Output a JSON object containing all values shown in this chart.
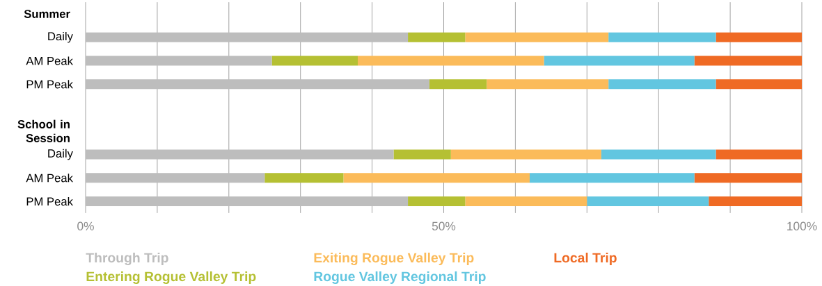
{
  "chart_data": {
    "type": "bar",
    "orientation": "horizontal",
    "stacked": true,
    "categories": [
      null,
      "Daily",
      "AM Peak",
      "PM Peak",
      null,
      null,
      "Daily",
      "AM Peak",
      "PM Peak"
    ],
    "annotations": [
      "Summer",
      "School in Session"
    ],
    "series": [
      {
        "name": "Through Trip",
        "color": "#bdbdbd",
        "values": [
          null,
          45,
          26,
          48,
          null,
          null,
          43,
          25,
          45
        ]
      },
      {
        "name": "Entering Rogue Valley Trip",
        "color": "#b5c033",
        "values": [
          null,
          8,
          12,
          8,
          null,
          null,
          8,
          11,
          8
        ]
      },
      {
        "name": "Exiting Rogue Valley Trip",
        "color": "#fbbb5a",
        "values": [
          null,
          20,
          26,
          17,
          null,
          null,
          21,
          26,
          17
        ]
      },
      {
        "name": "Rogue Valley Regional Trip",
        "color": "#62c6e0",
        "values": [
          null,
          15,
          21,
          15,
          null,
          null,
          16,
          23,
          17
        ]
      },
      {
        "name": "Local Trip",
        "color": "#ef6a24",
        "values": [
          null,
          12,
          15,
          12,
          null,
          null,
          12,
          15,
          13
        ]
      }
    ],
    "xlim": [
      0,
      100
    ],
    "xticks": [
      {
        "value": 0,
        "label": "0%"
      },
      {
        "value": 10,
        "label": null
      },
      {
        "value": 20,
        "label": null
      },
      {
        "value": 30,
        "label": null
      },
      {
        "value": 40,
        "label": null
      },
      {
        "value": 50,
        "label": "50%"
      },
      {
        "value": 60,
        "label": null
      },
      {
        "value": 70,
        "label": null
      },
      {
        "value": 80,
        "label": null
      },
      {
        "value": 90,
        "label": null
      },
      {
        "value": 100,
        "label": "100%"
      }
    ],
    "grid": "x",
    "legend": "bottom"
  }
}
